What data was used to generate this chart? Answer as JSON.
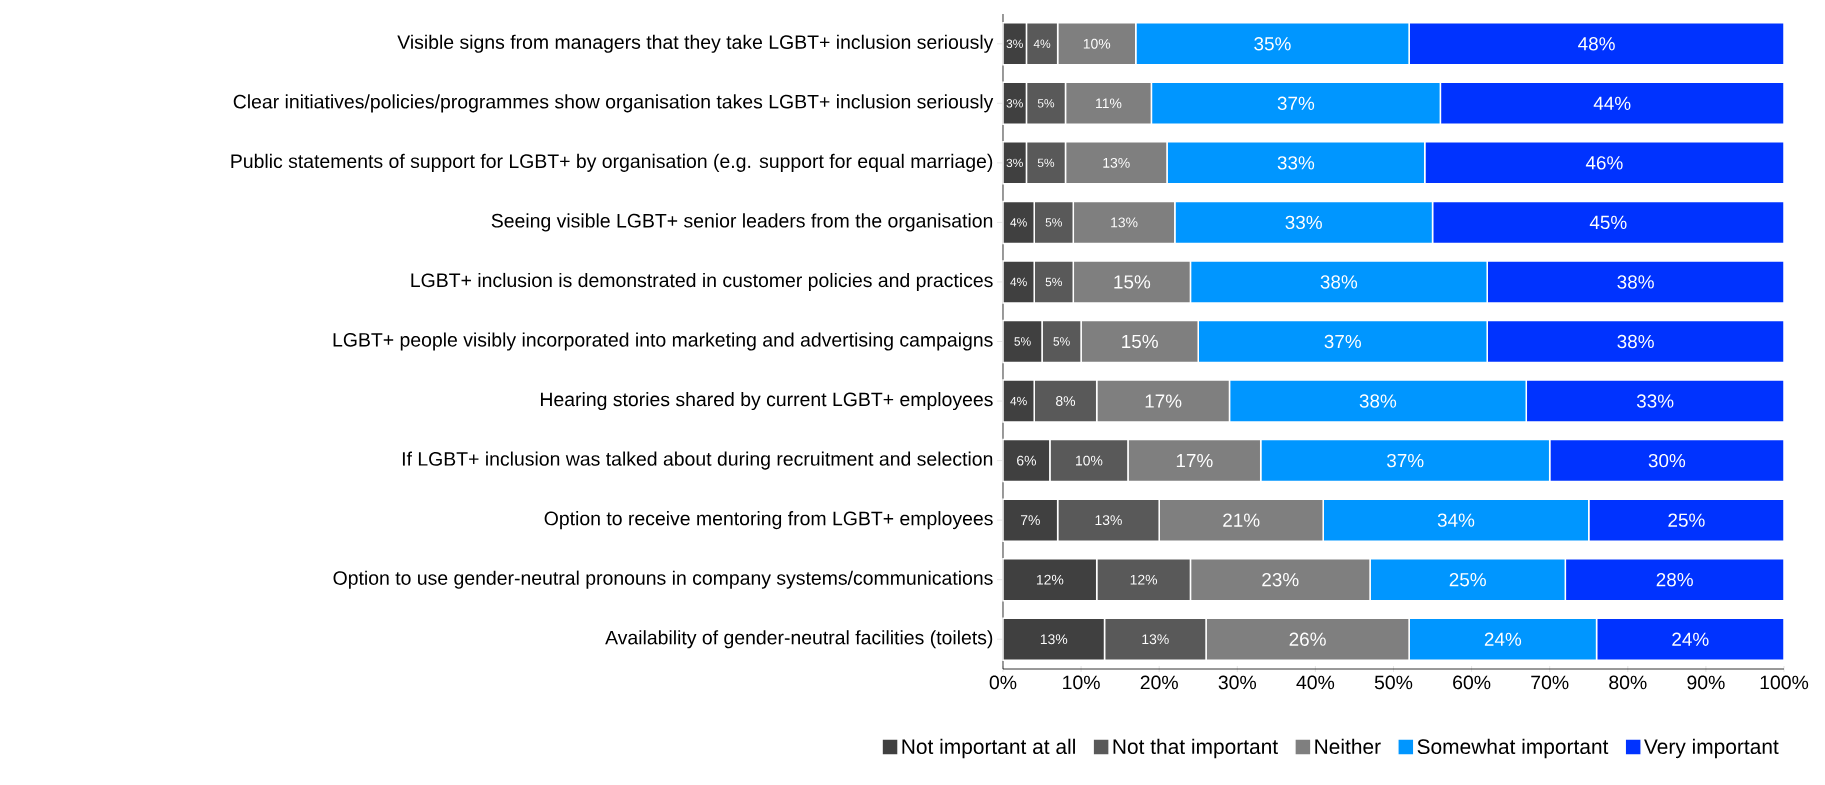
{
  "chart_data": {
    "type": "bar",
    "orientation": "horizontal",
    "stacked": true,
    "categories": [
      "Visible signs from managers that they take LGBT+ inclusion seriously",
      "Clear initiatives/policies/programmes show organisation takes LGBT+ inclusion seriously",
      "Public statements of support for LGBT+ by organisation (e.g. support for equal marriage)",
      "Seeing visible LGBT+ senior leaders from the organisation",
      "LGBT+ inclusion is demonstrated in customer policies and practices",
      "LGBT+ people visibly incorporated into marketing and advertising campaigns",
      "Hearing stories shared by current LGBT+ employees",
      "If LGBT+ inclusion was talked about during recruitment and selection",
      "Option to receive mentoring from LGBT+ employees",
      "Option to use gender-neutral pronouns in company systems/communications",
      "Availability of gender-neutral facilities (toilets)"
    ],
    "series": [
      {
        "name": "Not important at all",
        "color": "#404040",
        "values": [
          3,
          3,
          3,
          4,
          4,
          5,
          4,
          6,
          7,
          12,
          13
        ],
        "value_labels": [
          "3%",
          "3%",
          "3%",
          "4%",
          "4%",
          "5%",
          "4%",
          "6%",
          "7%",
          "12%",
          "13%"
        ]
      },
      {
        "name": "Not that important",
        "color": "#595959",
        "values": [
          4,
          5,
          5,
          5,
          5,
          5,
          8,
          10,
          13,
          12,
          13
        ],
        "value_labels": [
          "4%",
          "5%",
          "5%",
          "5%",
          "5%",
          "5%",
          "8%",
          "10%",
          "13%",
          "12%",
          "13%"
        ]
      },
      {
        "name": "Neither",
        "color": "#7f7f7f",
        "values": [
          10,
          11,
          13,
          13,
          15,
          15,
          17,
          17,
          21,
          23,
          26
        ],
        "value_labels": [
          "10%",
          "11%",
          "13%",
          "13%",
          "15%",
          "15%",
          "17%",
          "17%",
          "21%",
          "23%",
          "26%"
        ]
      },
      {
        "name": "Somewhat important",
        "color": "#0096ff",
        "values": [
          35,
          37,
          33,
          33,
          38,
          37,
          38,
          37,
          34,
          25,
          24
        ],
        "value_labels": [
          "35%",
          "37%",
          "33%",
          "33%",
          "38%",
          "37%",
          "38%",
          "37%",
          "34%",
          "25%",
          "24%"
        ]
      },
      {
        "name": "Very important",
        "color": "#0033ff",
        "values": [
          48,
          44,
          46,
          45,
          38,
          38,
          33,
          30,
          25,
          28,
          24
        ],
        "value_labels": [
          "48%",
          "44%",
          "46%",
          "45%",
          "38%",
          "38%",
          "33%",
          "30%",
          "25%",
          "28%",
          "24%"
        ]
      }
    ],
    "xlim": [
      0,
      100
    ],
    "xticks": [
      {
        "value": 0,
        "label": "0%"
      },
      {
        "value": 10,
        "label": "10%"
      },
      {
        "value": 20,
        "label": "20%"
      },
      {
        "value": 30,
        "label": "30%"
      },
      {
        "value": 40,
        "label": "40%"
      },
      {
        "value": 50,
        "label": "50%"
      },
      {
        "value": 60,
        "label": "60%"
      },
      {
        "value": 70,
        "label": "70%"
      },
      {
        "value": 80,
        "label": "80%"
      },
      {
        "value": 90,
        "label": "90%"
      },
      {
        "value": 100,
        "label": "100%"
      }
    ],
    "legend": "bottom"
  }
}
